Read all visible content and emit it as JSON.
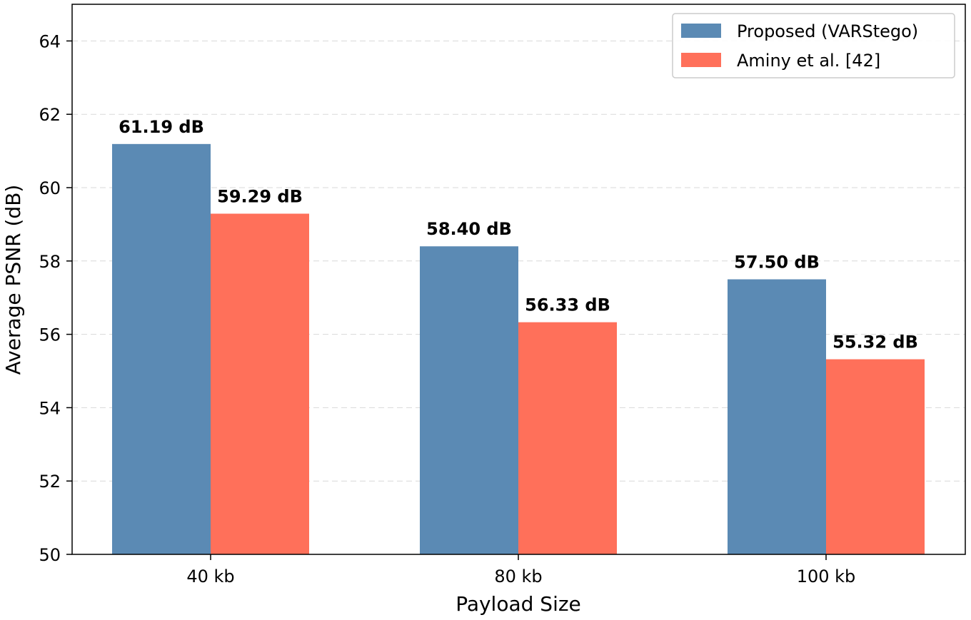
{
  "chart_data": {
    "type": "bar",
    "categories": [
      "40 kb",
      "80 kb",
      "100 kb"
    ],
    "series": [
      {
        "name": "Proposed (VARStego)",
        "values": [
          61.19,
          58.4,
          57.5
        ],
        "labels": [
          "61.19 dB",
          "58.40 dB",
          "57.50 dB"
        ],
        "color": "#5b8ab4"
      },
      {
        "name": "Aminy et al. [42]",
        "values": [
          59.29,
          56.33,
          55.32
        ],
        "labels": [
          "59.29 dB",
          "56.33 dB",
          "55.32 dB"
        ],
        "color": "#ff705a"
      }
    ],
    "xlabel": "Payload Size",
    "ylabel": "Average PSNR (dB)",
    "ylim": [
      50,
      65
    ],
    "yticks": [
      50,
      52,
      54,
      56,
      58,
      60,
      62,
      64
    ],
    "grid": true,
    "legend": "top-right"
  }
}
